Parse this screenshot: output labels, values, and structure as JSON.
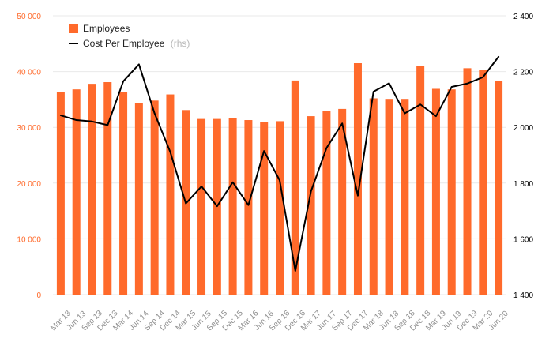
{
  "colors": {
    "bar": "#ff6a2b",
    "line": "#000000",
    "left_axis_text": "#ff6a2b",
    "right_axis_text": "#000000",
    "x_axis_text": "#8f8f8f",
    "grid": "#e9e9e9"
  },
  "legend": {
    "employees_label": "Employees",
    "cost_label": "Cost Per Employee",
    "cost_note": "(rhs)"
  },
  "chart_data": {
    "type": "bar",
    "title": "",
    "xlabel": "",
    "ylabel": "",
    "legend_position": "top-left",
    "grid": true,
    "categories": [
      "Mar 13",
      "Jun 13",
      "Sep 13",
      "Dec 13",
      "Mar 14",
      "Jun 14",
      "Sep 14",
      "Dec 14",
      "Mar 15",
      "Jun 15",
      "Sep 15",
      "Dec 15",
      "Mar 16",
      "Jun 16",
      "Sep 16",
      "Dec 16",
      "Mar 17",
      "Jun 17",
      "Sep 17",
      "Dec 17",
      "Mar 18",
      "Jun 18",
      "Sep 18",
      "Dec 18",
      "Mar 19",
      "Jun 19",
      "Dec 19",
      "Mar 20",
      "Jun 20"
    ],
    "left_axis": {
      "min": 0,
      "max": 50000,
      "ticks": [
        0,
        10000,
        20000,
        30000,
        40000,
        50000
      ],
      "tick_labels": [
        "0",
        "10 000",
        "20 000",
        "30 000",
        "40 000",
        "50 000"
      ]
    },
    "right_axis": {
      "min": 1400,
      "max": 2400,
      "ticks": [
        1400,
        1600,
        1800,
        2000,
        2200,
        2400
      ],
      "tick_labels": [
        "1 400",
        "1 600",
        "1 800",
        "2 000",
        "2 200",
        "2 400"
      ]
    },
    "series": [
      {
        "name": "Employees",
        "type": "bar",
        "axis": "left",
        "values": [
          36300,
          36800,
          37800,
          38100,
          36400,
          34300,
          34800,
          35900,
          33100,
          31500,
          31500,
          31700,
          31300,
          30900,
          31100,
          38400,
          32000,
          33000,
          33300,
          41500,
          35200,
          35100,
          35100,
          41000,
          36900,
          36800,
          40600,
          40300,
          38300
        ]
      },
      {
        "name": "Cost Per Employee",
        "type": "line",
        "axis": "right",
        "values": [
          2043,
          2026,
          2021,
          2008,
          2165,
          2226,
          2050,
          1912,
          1727,
          1788,
          1717,
          1803,
          1721,
          1915,
          1810,
          1485,
          1770,
          1926,
          2014,
          1755,
          2128,
          2158,
          2050,
          2082,
          2040,
          2145,
          2157,
          2180,
          2253
        ]
      }
    ]
  }
}
